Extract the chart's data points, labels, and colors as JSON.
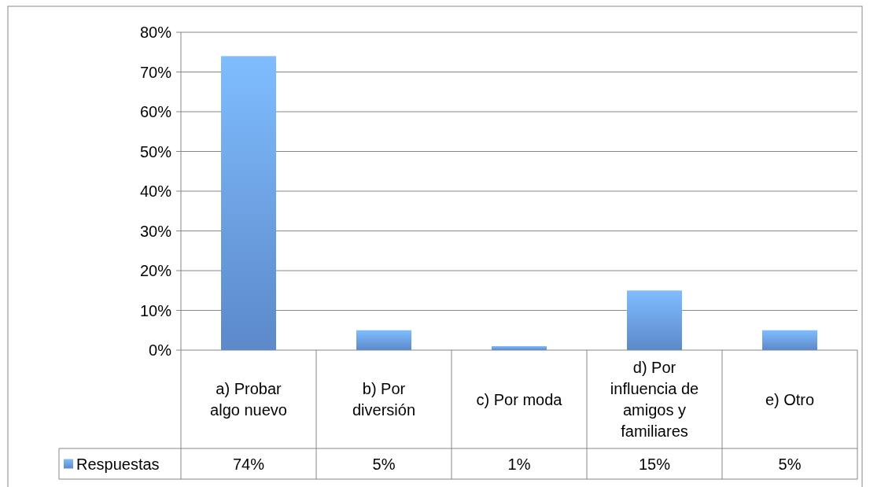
{
  "chart_data": {
    "type": "bar",
    "categories": [
      "a) Probar algo nuevo",
      "b) Por diversión",
      "c) Por moda",
      "d) Por influencia de amigos y familiares",
      "e) Otro"
    ],
    "series": [
      {
        "name": "Respuestas",
        "color": "#6a9ee8",
        "values": [
          74,
          5,
          1,
          15,
          5
        ],
        "value_labels": [
          "74%",
          "5%",
          "1%",
          "15%",
          "5%"
        ]
      }
    ],
    "ylim": [
      0,
      80
    ],
    "yticks": [
      {
        "value": 0,
        "label": "0%"
      },
      {
        "value": 10,
        "label": "10%"
      },
      {
        "value": 20,
        "label": "20%"
      },
      {
        "value": 30,
        "label": "30%"
      },
      {
        "value": 40,
        "label": "40%"
      },
      {
        "value": 50,
        "label": "50%"
      },
      {
        "value": 60,
        "label": "60%"
      },
      {
        "value": 70,
        "label": "70%"
      },
      {
        "value": 80,
        "label": "80%"
      }
    ],
    "grid": "y",
    "legend": "bottom"
  }
}
